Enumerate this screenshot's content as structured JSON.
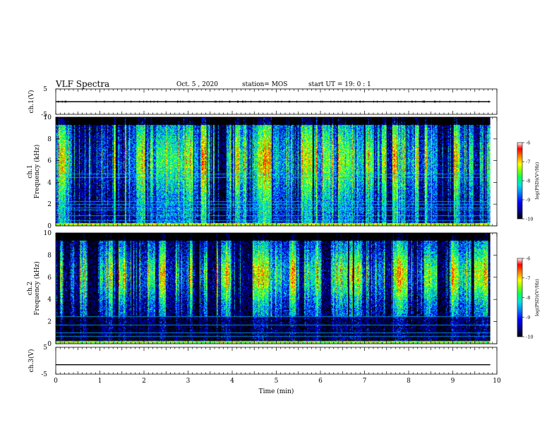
{
  "header": {
    "title": "VLF Spectra",
    "date": "Oct. 5 , 2020",
    "station": "station= MOS",
    "start": "start UT =  19: 0 : 1"
  },
  "chart_data": [
    {
      "type": "line",
      "panel": "ch1-waveform",
      "ylabel": "ch.1(V)",
      "ylim": [
        -5,
        5
      ],
      "yticks": [
        "5",
        "-5"
      ],
      "x": [
        0,
        9.85
      ],
      "series": [
        {
          "values": [
            0.0,
            0.0
          ]
        }
      ]
    },
    {
      "type": "heatmap",
      "panel": "ch1-spectrogram",
      "ylabel": "ch.1\nFrequency (kHz)",
      "ylim": [
        0,
        10
      ],
      "yticks": [
        "0",
        "2",
        "4",
        "6",
        "8",
        "10"
      ],
      "xlim": [
        0,
        10
      ],
      "data_extent_min": 9.85,
      "colorbar": {
        "label": "log(PSD)(V²/Hz)",
        "range": [
          -10,
          -6
        ],
        "ticks": [
          "-6",
          "-7",
          "-8",
          "-9",
          "-10"
        ]
      }
    },
    {
      "type": "heatmap",
      "panel": "ch2-spectrogram",
      "ylabel": "ch.2\nFrequency (kHz)",
      "ylim": [
        0,
        10
      ],
      "yticks": [
        "0",
        "2",
        "4",
        "6",
        "8",
        "10"
      ],
      "xlim": [
        0,
        10
      ],
      "data_extent_min": 9.85,
      "colorbar": {
        "label": "log(PSD)(V²/Hz)",
        "range": [
          -10,
          -6
        ],
        "ticks": [
          "-6",
          "-7",
          "-8",
          "-9",
          "-10"
        ]
      }
    },
    {
      "type": "line",
      "panel": "ch3-waveform",
      "ylabel": "ch.3(V)",
      "ylim": [
        -5,
        5
      ],
      "yticks": [
        "5",
        "-5"
      ],
      "x": [
        0,
        9.85
      ],
      "series": [
        {
          "values": [
            -1.5,
            -1.5
          ]
        }
      ]
    }
  ],
  "xaxis": {
    "label": "Time (min)",
    "ticks": [
      "0",
      "1",
      "2",
      "3",
      "4",
      "5",
      "6",
      "7",
      "8",
      "9",
      "10"
    ],
    "range": [
      0,
      10
    ]
  },
  "colors": {
    "colormap": [
      "#000000",
      "#00008b",
      "#0000ff",
      "#0080ff",
      "#00e0e0",
      "#00ff60",
      "#80ff00",
      "#ffff00",
      "#ff8000",
      "#ff0000",
      "#ffffff"
    ]
  }
}
